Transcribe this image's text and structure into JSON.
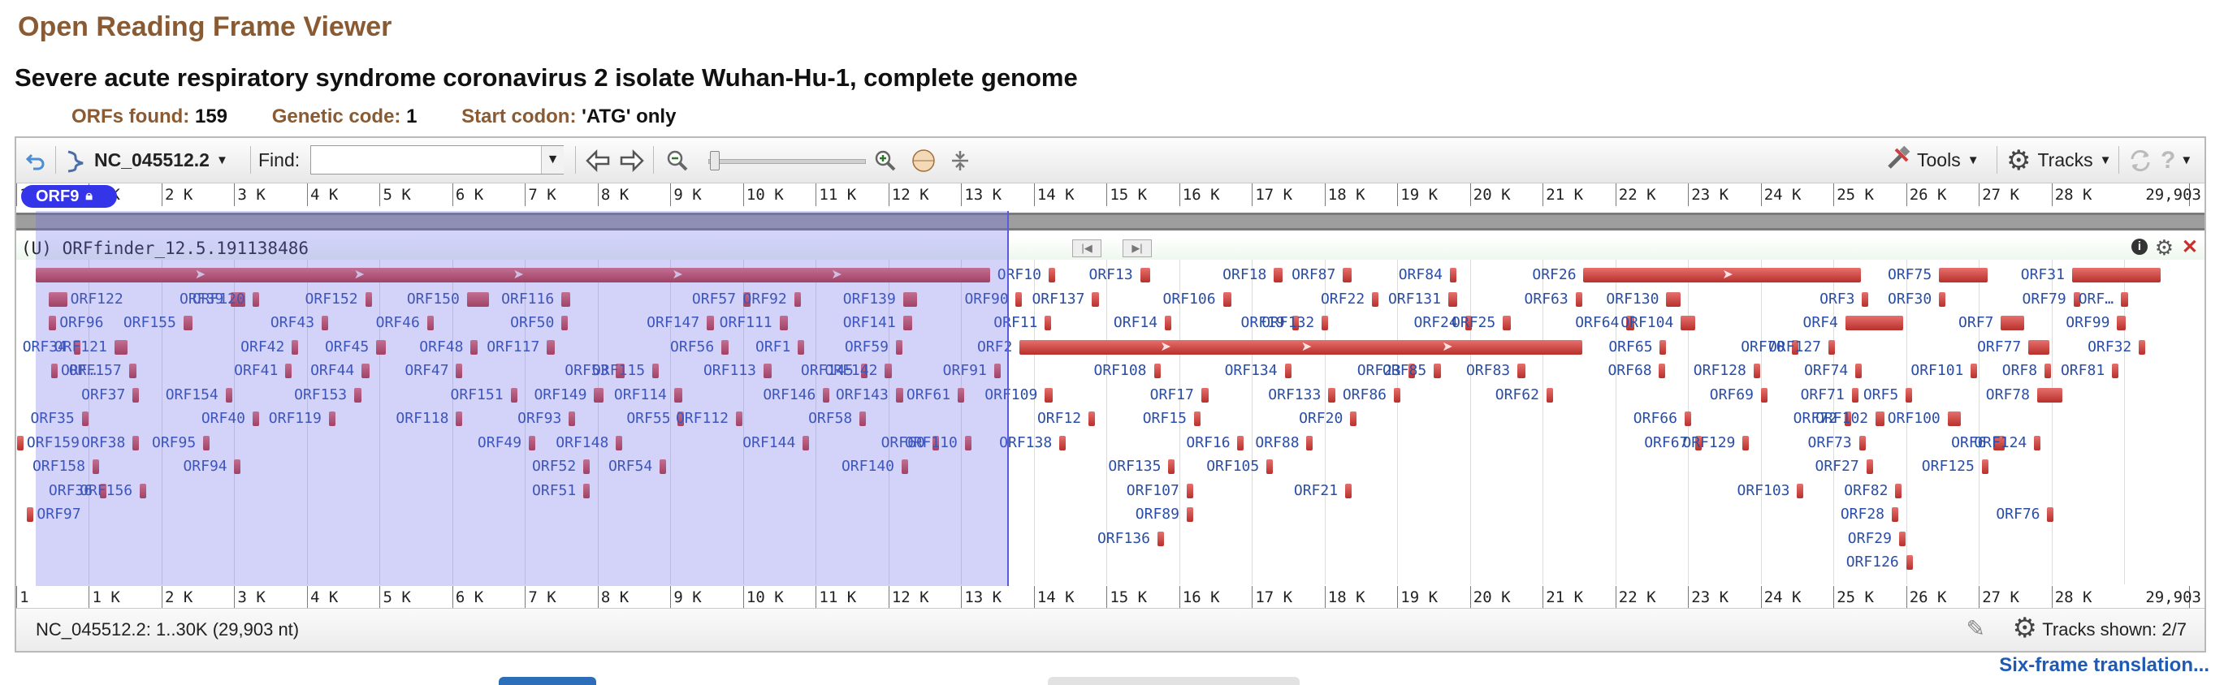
{
  "page": {
    "title": "Open Reading Frame Viewer",
    "sequence_title": "Severe acute respiratory syndrome coronavirus 2 isolate Wuhan-Hu-1, complete genome",
    "summary": [
      {
        "label": "ORFs found:",
        "value": "159"
      },
      {
        "label": "Genetic code:",
        "value": "1"
      },
      {
        "label": "Start codon:",
        "value": "'ATG' only"
      }
    ],
    "six_frame_link": "Six-frame translation..."
  },
  "toolbar": {
    "accession": "NC_045512.2",
    "find_label": "Find:",
    "find_value": "",
    "tools_label": "Tools",
    "tracks_label": "Tracks",
    "icons": [
      "undo-icon",
      "sequence-icon",
      "dropdown-icon",
      "back-arrow-icon",
      "forward-arrow-icon",
      "zoom-out-icon",
      "zoom-in-icon",
      "atg-icon",
      "fit-icon",
      "tools-icon",
      "gear-icon",
      "refresh-icon",
      "help-icon"
    ]
  },
  "ruler": {
    "ticks": [
      "1",
      "1 K",
      "2 K",
      "3 K",
      "4 K",
      "5 K",
      "6 K",
      "7 K",
      "8 K",
      "9 K",
      "10 K",
      "11 K",
      "12 K",
      "13 K",
      "14 K",
      "15 K",
      "16 K",
      "17 K",
      "18 K",
      "19 K",
      "20 K",
      "21 K",
      "22 K",
      "23 K",
      "24 K",
      "25 K",
      "26 K",
      "27 K",
      "28 K",
      "29,903"
    ]
  },
  "selection": {
    "label": "ORF9",
    "start": 1,
    "end": 13400
  },
  "track": {
    "title": "(U) ORFfinder_12.5.191138486",
    "features": [
      {
        "name": "ORF9",
        "start": 266,
        "end": 13400,
        "row": 0
      },
      {
        "name": "ORF10",
        "start": 14200,
        "end": 14260,
        "row": 0
      },
      {
        "name": "ORF13",
        "start": 15460,
        "end": 15600,
        "row": 0
      },
      {
        "name": "ORF18",
        "start": 17300,
        "end": 17420,
        "row": 0
      },
      {
        "name": "ORF87",
        "start": 18250,
        "end": 18370,
        "row": 0
      },
      {
        "name": "ORF84",
        "start": 19720,
        "end": 19790,
        "row": 0
      },
      {
        "name": "ORF26",
        "start": 21560,
        "end": 25380,
        "row": 0
      },
      {
        "name": "ORF75",
        "start": 26450,
        "end": 27120,
        "row": 0
      },
      {
        "name": "ORF31",
        "start": 28280,
        "end": 29500,
        "row": 0
      },
      {
        "name": "ORF122",
        "start": 450,
        "end": 700,
        "row": 1
      },
      {
        "name": "ORF39",
        "start": 2950,
        "end": 3150,
        "row": 1
      },
      {
        "name": "ORF120",
        "start": 3250,
        "end": 3340,
        "row": 1
      },
      {
        "name": "ORF152",
        "start": 4800,
        "end": 4900,
        "row": 1
      },
      {
        "name": "ORF150",
        "start": 6200,
        "end": 6500,
        "row": 1
      },
      {
        "name": "ORF116",
        "start": 7500,
        "end": 7620,
        "row": 1
      },
      {
        "name": "ORF57",
        "start": 10000,
        "end": 10100,
        "row": 1
      },
      {
        "name": "ORF92",
        "start": 10700,
        "end": 10790,
        "row": 1
      },
      {
        "name": "ORF139",
        "start": 12200,
        "end": 12390,
        "row": 1
      },
      {
        "name": "ORF90",
        "start": 13750,
        "end": 13820,
        "row": 1
      },
      {
        "name": "ORF137",
        "start": 14800,
        "end": 14900,
        "row": 1
      },
      {
        "name": "ORF106",
        "start": 16600,
        "end": 16720,
        "row": 1
      },
      {
        "name": "ORF22",
        "start": 18650,
        "end": 18700,
        "row": 1
      },
      {
        "name": "ORF131",
        "start": 19700,
        "end": 19820,
        "row": 1
      },
      {
        "name": "ORF63",
        "start": 21450,
        "end": 21520,
        "row": 1
      },
      {
        "name": "ORF130",
        "start": 22700,
        "end": 22900,
        "row": 1
      },
      {
        "name": "ORF3",
        "start": 25390,
        "end": 25460,
        "row": 1
      },
      {
        "name": "ORF30",
        "start": 26450,
        "end": 26520,
        "row": 1
      },
      {
        "name": "ORF79",
        "start": 28300,
        "end": 28400,
        "row": 1
      },
      {
        "name": "ORF…",
        "start": 28950,
        "end": 29050,
        "row": 1
      },
      {
        "name": "ORF96",
        "start": 450,
        "end": 550,
        "row": 2
      },
      {
        "name": "ORF155",
        "start": 2300,
        "end": 2420,
        "row": 2
      },
      {
        "name": "ORF43",
        "start": 4200,
        "end": 4280,
        "row": 2
      },
      {
        "name": "ORF46",
        "start": 5650,
        "end": 5730,
        "row": 2
      },
      {
        "name": "ORF50",
        "start": 7500,
        "end": 7580,
        "row": 2
      },
      {
        "name": "ORF147",
        "start": 9500,
        "end": 9600,
        "row": 2
      },
      {
        "name": "ORF111",
        "start": 10500,
        "end": 10620,
        "row": 2
      },
      {
        "name": "ORF141",
        "start": 12200,
        "end": 12330,
        "row": 2
      },
      {
        "name": "ORF11",
        "start": 14150,
        "end": 14230,
        "row": 2
      },
      {
        "name": "ORF14",
        "start": 15800,
        "end": 15890,
        "row": 2
      },
      {
        "name": "ORF19",
        "start": 17550,
        "end": 17630,
        "row": 2
      },
      {
        "name": "ORF132",
        "start": 17960,
        "end": 18030,
        "row": 2
      },
      {
        "name": "ORF24",
        "start": 19930,
        "end": 19990,
        "row": 2
      },
      {
        "name": "ORF25",
        "start": 20450,
        "end": 20560,
        "row": 2
      },
      {
        "name": "ORF64",
        "start": 22150,
        "end": 22260,
        "row": 2
      },
      {
        "name": "ORF104",
        "start": 22900,
        "end": 23100,
        "row": 2
      },
      {
        "name": "ORF4",
        "start": 25160,
        "end": 25960,
        "row": 2
      },
      {
        "name": "ORF7",
        "start": 27300,
        "end": 27620,
        "row": 2
      },
      {
        "name": "ORF99",
        "start": 28900,
        "end": 29020,
        "row": 2
      },
      {
        "name": "ORF34",
        "start": 790,
        "end": 850,
        "row": 3
      },
      {
        "name": "ORF121",
        "start": 1350,
        "end": 1530,
        "row": 3
      },
      {
        "name": "ORF42",
        "start": 3790,
        "end": 3850,
        "row": 3
      },
      {
        "name": "ORF45",
        "start": 4950,
        "end": 5090,
        "row": 3
      },
      {
        "name": "ORF48",
        "start": 6250,
        "end": 6350,
        "row": 3
      },
      {
        "name": "ORF117",
        "start": 7300,
        "end": 7410,
        "row": 3
      },
      {
        "name": "ORF56",
        "start": 9700,
        "end": 9800,
        "row": 3
      },
      {
        "name": "ORF1",
        "start": 10750,
        "end": 10820,
        "row": 3
      },
      {
        "name": "ORF59",
        "start": 12100,
        "end": 12180,
        "row": 3
      },
      {
        "name": "ORF2",
        "start": 13800,
        "end": 21550,
        "row": 3
      },
      {
        "name": "ORF65",
        "start": 22610,
        "end": 22670,
        "row": 3
      },
      {
        "name": "ORF70",
        "start": 24430,
        "end": 24510,
        "row": 3
      },
      {
        "name": "ORF127",
        "start": 24930,
        "end": 25010,
        "row": 3
      },
      {
        "name": "ORF77",
        "start": 27680,
        "end": 27970,
        "row": 3
      },
      {
        "name": "ORF32",
        "start": 29200,
        "end": 29280,
        "row": 3
      },
      {
        "name": "ORF…",
        "start": 480,
        "end": 560,
        "row": 4
      },
      {
        "name": "ORF157",
        "start": 1550,
        "end": 1650,
        "row": 4
      },
      {
        "name": "ORF41",
        "start": 3700,
        "end": 3790,
        "row": 4
      },
      {
        "name": "ORF44",
        "start": 4750,
        "end": 4860,
        "row": 4
      },
      {
        "name": "ORF47",
        "start": 6050,
        "end": 6120,
        "row": 4
      },
      {
        "name": "ORF53",
        "start": 8250,
        "end": 8370,
        "row": 4
      },
      {
        "name": "ORF115",
        "start": 8750,
        "end": 8820,
        "row": 4
      },
      {
        "name": "ORF113",
        "start": 10280,
        "end": 10390,
        "row": 4
      },
      {
        "name": "ORF145",
        "start": 11620,
        "end": 11700,
        "row": 4
      },
      {
        "name": "ORF142",
        "start": 11950,
        "end": 12050,
        "row": 4
      },
      {
        "name": "ORF91",
        "start": 13450,
        "end": 13540,
        "row": 4
      },
      {
        "name": "ORF108",
        "start": 15650,
        "end": 15730,
        "row": 4
      },
      {
        "name": "ORF134",
        "start": 17450,
        "end": 17530,
        "row": 4
      },
      {
        "name": "ORF23",
        "start": 19150,
        "end": 19230,
        "row": 4
      },
      {
        "name": "ORF85",
        "start": 19500,
        "end": 19600,
        "row": 4
      },
      {
        "name": "ORF83",
        "start": 20650,
        "end": 20760,
        "row": 4
      },
      {
        "name": "ORF68",
        "start": 22600,
        "end": 22660,
        "row": 4
      },
      {
        "name": "ORF128",
        "start": 23900,
        "end": 23980,
        "row": 4
      },
      {
        "name": "ORF74",
        "start": 25300,
        "end": 25380,
        "row": 4
      },
      {
        "name": "ORF101",
        "start": 26890,
        "end": 26930,
        "row": 4
      },
      {
        "name": "ORF8",
        "start": 27900,
        "end": 27950,
        "row": 4
      },
      {
        "name": "ORF81",
        "start": 28830,
        "end": 28900,
        "row": 4
      },
      {
        "name": "ORF37",
        "start": 1600,
        "end": 1680,
        "row": 5
      },
      {
        "name": "ORF154",
        "start": 2880,
        "end": 2950,
        "row": 5
      },
      {
        "name": "ORF153",
        "start": 4650,
        "end": 4750,
        "row": 5
      },
      {
        "name": "ORF151",
        "start": 6800,
        "end": 6900,
        "row": 5
      },
      {
        "name": "ORF149",
        "start": 7950,
        "end": 8080,
        "row": 5
      },
      {
        "name": "ORF114",
        "start": 9050,
        "end": 9160,
        "row": 5
      },
      {
        "name": "ORF146",
        "start": 11100,
        "end": 11190,
        "row": 5
      },
      {
        "name": "ORF143",
        "start": 12100,
        "end": 12200,
        "row": 5
      },
      {
        "name": "ORF61",
        "start": 12950,
        "end": 13040,
        "row": 5
      },
      {
        "name": "ORF109",
        "start": 14150,
        "end": 14260,
        "row": 5
      },
      {
        "name": "ORF17",
        "start": 16300,
        "end": 16400,
        "row": 5
      },
      {
        "name": "ORF133",
        "start": 18050,
        "end": 18150,
        "row": 5
      },
      {
        "name": "ORF86",
        "start": 18950,
        "end": 19000,
        "row": 5
      },
      {
        "name": "ORF62",
        "start": 21050,
        "end": 21120,
        "row": 5
      },
      {
        "name": "ORF69",
        "start": 24000,
        "end": 24080,
        "row": 5
      },
      {
        "name": "ORF71",
        "start": 25250,
        "end": 25340,
        "row": 5
      },
      {
        "name": "ORF5",
        "start": 25990,
        "end": 26050,
        "row": 5
      },
      {
        "name": "ORF78",
        "start": 27800,
        "end": 28150,
        "row": 5
      },
      {
        "name": "ORF35",
        "start": 900,
        "end": 980,
        "row": 6
      },
      {
        "name": "ORF40",
        "start": 3250,
        "end": 3320,
        "row": 6
      },
      {
        "name": "ORF119",
        "start": 4300,
        "end": 4370,
        "row": 6
      },
      {
        "name": "ORF118",
        "start": 6050,
        "end": 6130,
        "row": 6
      },
      {
        "name": "ORF93",
        "start": 7600,
        "end": 7680,
        "row": 6
      },
      {
        "name": "ORF55",
        "start": 9100,
        "end": 9160,
        "row": 6
      },
      {
        "name": "ORF112",
        "start": 9900,
        "end": 9960,
        "row": 6
      },
      {
        "name": "ORF58",
        "start": 11600,
        "end": 11650,
        "row": 6
      },
      {
        "name": "ORF12",
        "start": 14750,
        "end": 14800,
        "row": 6
      },
      {
        "name": "ORF15",
        "start": 16200,
        "end": 16270,
        "row": 6
      },
      {
        "name": "ORF20",
        "start": 18350,
        "end": 18420,
        "row": 6
      },
      {
        "name": "ORF66",
        "start": 22950,
        "end": 23020,
        "row": 6
      },
      {
        "name": "ORF72",
        "start": 25150,
        "end": 25230,
        "row": 6
      },
      {
        "name": "ORF102",
        "start": 25580,
        "end": 25700,
        "row": 6
      },
      {
        "name": "ORF100",
        "start": 26570,
        "end": 26750,
        "row": 6
      },
      {
        "name": "ORF159",
        "start": 10,
        "end": 60,
        "row": 7
      },
      {
        "name": "ORF38",
        "start": 1600,
        "end": 1680,
        "row": 7
      },
      {
        "name": "ORF95",
        "start": 2570,
        "end": 2620,
        "row": 7
      },
      {
        "name": "ORF49",
        "start": 7050,
        "end": 7120,
        "row": 7
      },
      {
        "name": "ORF148",
        "start": 8250,
        "end": 8330,
        "row": 7
      },
      {
        "name": "ORF144",
        "start": 10820,
        "end": 10880,
        "row": 7
      },
      {
        "name": "ORF60",
        "start": 12600,
        "end": 12680,
        "row": 7
      },
      {
        "name": "ORF110",
        "start": 13050,
        "end": 13130,
        "row": 7
      },
      {
        "name": "ORF138",
        "start": 14350,
        "end": 14420,
        "row": 7
      },
      {
        "name": "ORF16",
        "start": 16800,
        "end": 16870,
        "row": 7
      },
      {
        "name": "ORF88",
        "start": 17750,
        "end": 17820,
        "row": 7
      },
      {
        "name": "ORF67",
        "start": 23100,
        "end": 23160,
        "row": 7
      },
      {
        "name": "ORF129",
        "start": 23750,
        "end": 23820,
        "row": 7
      },
      {
        "name": "ORF73",
        "start": 25350,
        "end": 25420,
        "row": 7
      },
      {
        "name": "ORF6",
        "start": 27200,
        "end": 27350,
        "row": 7
      },
      {
        "name": "ORF124",
        "start": 27760,
        "end": 27830,
        "row": 7
      },
      {
        "name": "ORF158",
        "start": 1050,
        "end": 1110,
        "row": 8
      },
      {
        "name": "ORF94",
        "start": 3000,
        "end": 3070,
        "row": 8
      },
      {
        "name": "ORF52",
        "start": 7800,
        "end": 7860,
        "row": 8
      },
      {
        "name": "ORF54",
        "start": 8850,
        "end": 8920,
        "row": 8
      },
      {
        "name": "ORF140",
        "start": 12180,
        "end": 12240,
        "row": 8
      },
      {
        "name": "ORF135",
        "start": 15850,
        "end": 15920,
        "row": 8
      },
      {
        "name": "ORF105",
        "start": 17200,
        "end": 17270,
        "row": 8
      },
      {
        "name": "ORF27",
        "start": 25450,
        "end": 25530,
        "row": 8
      },
      {
        "name": "ORF125",
        "start": 27040,
        "end": 27110,
        "row": 8
      },
      {
        "name": "ORF36",
        "start": 1150,
        "end": 1210,
        "row": 9
      },
      {
        "name": "ORF156",
        "start": 1700,
        "end": 1770,
        "row": 9
      },
      {
        "name": "ORF51",
        "start": 7800,
        "end": 7870,
        "row": 9
      },
      {
        "name": "ORF107",
        "start": 16100,
        "end": 16160,
        "row": 9
      },
      {
        "name": "ORF21",
        "start": 18280,
        "end": 18350,
        "row": 9
      },
      {
        "name": "ORF103",
        "start": 24500,
        "end": 24560,
        "row": 9
      },
      {
        "name": "ORF82",
        "start": 25850,
        "end": 25940,
        "row": 9
      },
      {
        "name": "ORF97",
        "start": 150,
        "end": 220,
        "row": 10
      },
      {
        "name": "ORF89",
        "start": 16100,
        "end": 16180,
        "row": 10
      },
      {
        "name": "ORF28",
        "start": 25800,
        "end": 25860,
        "row": 10
      },
      {
        "name": "ORF76",
        "start": 27940,
        "end": 28000,
        "row": 10
      },
      {
        "name": "ORF136",
        "start": 15700,
        "end": 15750,
        "row": 11
      },
      {
        "name": "ORF29",
        "start": 25900,
        "end": 25970,
        "row": 11
      },
      {
        "name": "ORF126",
        "start": 26000,
        "end": 26060,
        "row": 12
      }
    ]
  },
  "status": {
    "range": "NC_045512.2: 1..30K (29,903 nt)",
    "tracks_shown": "Tracks shown: 2/7"
  }
}
